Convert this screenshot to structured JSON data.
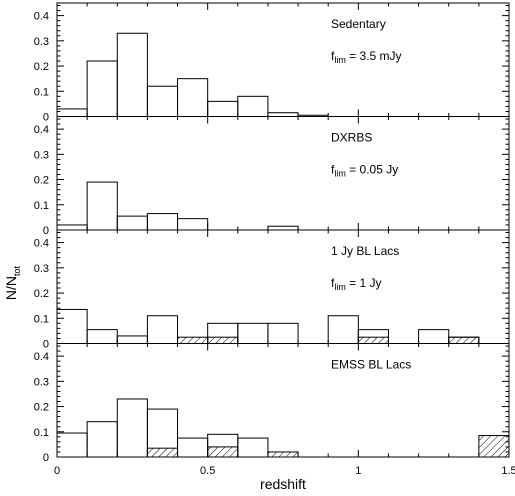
{
  "chart_data": [
    {
      "type": "histogram",
      "panel_label": "Sedentary",
      "flim_label": {
        "f": "f",
        "sub": "lim",
        "rest": " = 3.5 mJy"
      },
      "ylim": [
        0,
        0.45
      ],
      "yticks": [
        "0",
        "0.1",
        "0.2",
        "0.3",
        "0.4"
      ],
      "bins": [
        [
          0,
          0.1
        ],
        [
          0.1,
          0.2
        ],
        [
          0.2,
          0.3
        ],
        [
          0.3,
          0.4
        ],
        [
          0.4,
          0.5
        ],
        [
          0.5,
          0.6
        ],
        [
          0.6,
          0.7
        ],
        [
          0.7,
          0.8
        ],
        [
          0.8,
          0.9
        ]
      ],
      "values": [
        0.03,
        0.22,
        0.33,
        0.12,
        0.15,
        0.06,
        0.08,
        0.015,
        0.005
      ],
      "hatched": []
    },
    {
      "type": "histogram",
      "panel_label": "DXRBS",
      "flim_label": {
        "f": "f",
        "sub": "lim",
        "rest": " = 0.05 Jy"
      },
      "ylim": [
        0,
        0.45
      ],
      "yticks": [
        "0",
        "0.1",
        "0.2",
        "0.3",
        "0.4"
      ],
      "bins": [
        [
          0,
          0.1
        ],
        [
          0.1,
          0.2
        ],
        [
          0.2,
          0.3
        ],
        [
          0.3,
          0.4
        ],
        [
          0.4,
          0.5
        ],
        [
          0.7,
          0.8
        ]
      ],
      "values": [
        0.02,
        0.19,
        0.055,
        0.065,
        0.045,
        0.015
      ],
      "hatched": []
    },
    {
      "type": "histogram",
      "panel_label": "1 Jy BL Lacs",
      "flim_label": {
        "f": "f",
        "sub": "lim",
        "rest": " = 1 Jy"
      },
      "ylim": [
        0,
        0.45
      ],
      "yticks": [
        "0",
        "0.1",
        "0.2",
        "0.3",
        "0.4"
      ],
      "bins": [
        [
          0,
          0.1
        ],
        [
          0.1,
          0.2
        ],
        [
          0.2,
          0.3
        ],
        [
          0.3,
          0.4
        ],
        [
          0.5,
          0.6
        ],
        [
          0.6,
          0.7
        ],
        [
          0.7,
          0.8
        ],
        [
          0.9,
          1.0
        ],
        [
          1.0,
          1.1
        ],
        [
          1.2,
          1.3
        ],
        [
          1.3,
          1.4
        ]
      ],
      "values": [
        0.135,
        0.055,
        0.03,
        0.11,
        0.08,
        0.08,
        0.08,
        0.11,
        0.055,
        0.055,
        0.025
      ],
      "hatched": [
        {
          "bin": [
            0.4,
            0.5
          ],
          "value": 0.025
        },
        {
          "bin": [
            0.5,
            0.6
          ],
          "value": 0.025
        },
        {
          "bin": [
            1.0,
            1.1
          ],
          "value": 0.025
        },
        {
          "bin": [
            1.3,
            1.4
          ],
          "value": 0.025
        }
      ]
    },
    {
      "type": "histogram",
      "panel_label": "EMSS BL Lacs",
      "flim_label": null,
      "ylim": [
        0,
        0.45
      ],
      "yticks": [
        "0",
        "0.1",
        "0.2",
        "0.3",
        "0.4"
      ],
      "bins": [
        [
          0,
          0.1
        ],
        [
          0.1,
          0.2
        ],
        [
          0.2,
          0.3
        ],
        [
          0.3,
          0.4
        ],
        [
          0.4,
          0.5
        ],
        [
          0.5,
          0.6
        ],
        [
          0.6,
          0.7
        ]
      ],
      "values": [
        0.095,
        0.14,
        0.23,
        0.19,
        0.075,
        0.09,
        0.075
      ],
      "hatched": [
        {
          "bin": [
            0.3,
            0.4
          ],
          "value": 0.035
        },
        {
          "bin": [
            0.5,
            0.6
          ],
          "value": 0.04
        },
        {
          "bin": [
            0.7,
            0.8
          ],
          "value": 0.02
        },
        {
          "bin": [
            1.4,
            1.5
          ],
          "value": 0.085
        }
      ]
    }
  ],
  "x_axis": {
    "label": "redshift",
    "xlim": [
      0,
      1.5
    ],
    "ticks": [
      {
        "value": 0,
        "label": "0"
      },
      {
        "value": 0.5,
        "label": "0.5"
      },
      {
        "value": 1.0,
        "label": "1"
      },
      {
        "value": 1.5,
        "label": "1.5"
      }
    ]
  },
  "y_axis": {
    "label_main": "N/N",
    "label_sub": "tot"
  }
}
